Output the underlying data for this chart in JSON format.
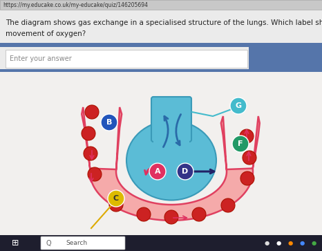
{
  "url_text": "https://my.educake.co.uk/my-educake/quiz/146205694",
  "question_line1": "The diagram shows gas exchange in a specialised structure of the lungs. Which label shows the",
  "question_line2": "movement of oxygen?",
  "answer_placeholder": "Enter your answer",
  "bg_top": "#e8e8e8",
  "bg_diagram": "#f0efee",
  "url_bar_color": "#d0cece",
  "blue_strip_color": "#5a7db5",
  "input_bg": "#f8f8f8",
  "alveolus_color": "#5bbcd6",
  "alveolus_edge": "#3a9ab8",
  "capillary_fill": "#f5aaaa",
  "capillary_edge": "#e04060",
  "rbc_color": "#cc2222",
  "arrow_blue": "#2a6aa8",
  "arrow_red": "#e03060",
  "arrow_dark": "#222266",
  "label_A_color": "#e03060",
  "label_B_color": "#2255bb",
  "label_C_color": "#ddbb00",
  "label_D_color": "#333388",
  "label_F_color": "#229966",
  "label_G_color": "#44bbcc",
  "line_G_color": "#44bbcc",
  "line_C_color": "#ddaa00",
  "taskbar_color": "#1a1a2e",
  "search_text": "Search"
}
